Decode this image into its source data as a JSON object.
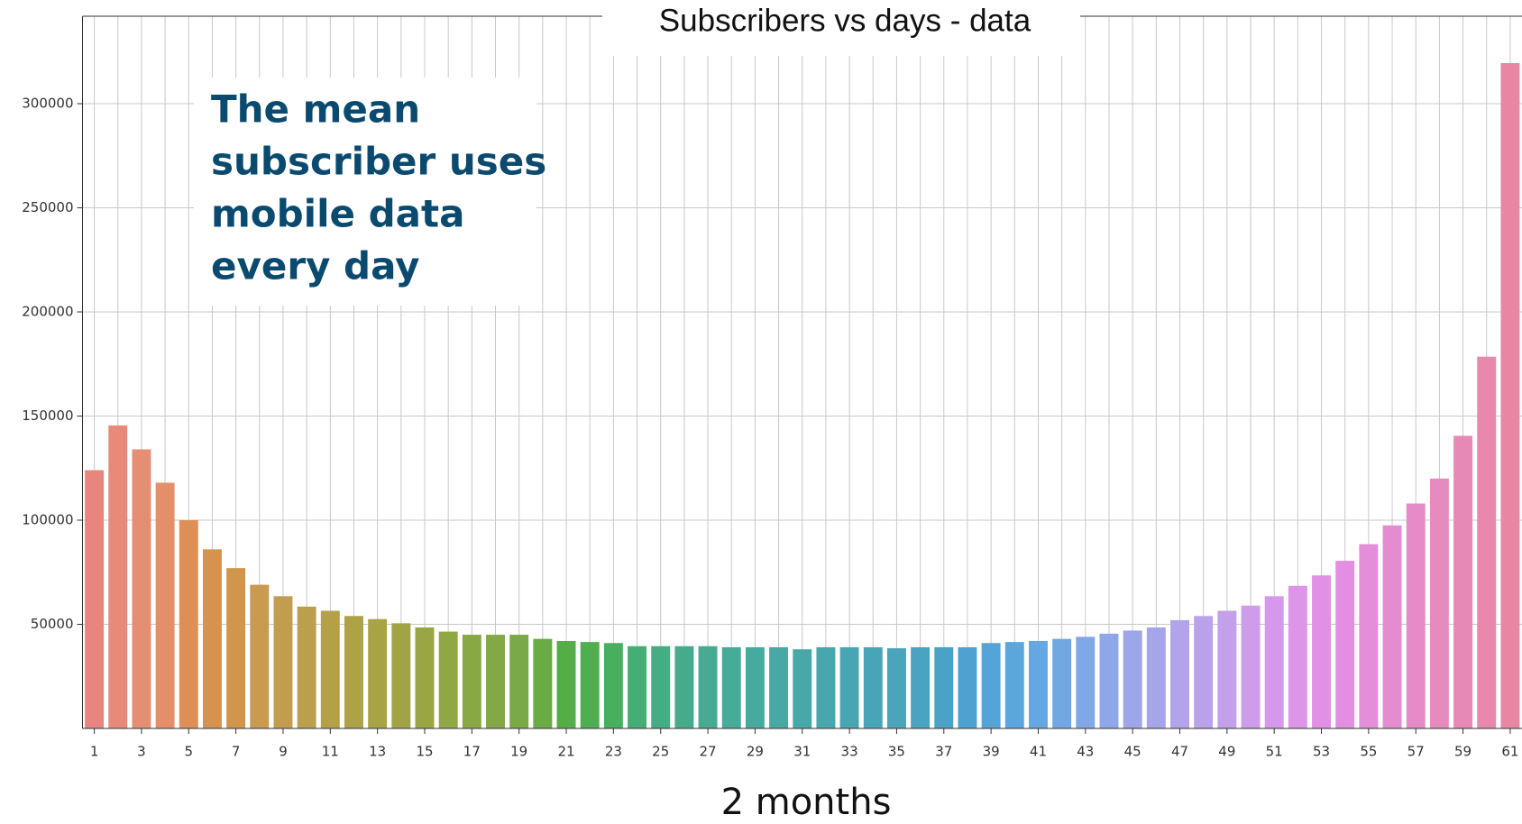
{
  "chart_data": {
    "type": "bar",
    "title": "Subscribers vs days - data",
    "x_label": "2 months",
    "annotation": [
      "The mean",
      "subscriber uses",
      "mobile data",
      "every day"
    ],
    "categories": [
      1,
      null,
      3,
      null,
      5,
      null,
      7,
      null,
      9,
      null,
      11,
      null,
      13,
      null,
      15,
      null,
      17,
      null,
      19,
      null,
      21,
      null,
      23,
      null,
      25,
      null,
      27,
      null,
      29,
      null,
      31,
      null,
      33,
      null,
      35,
      null,
      37,
      null,
      39,
      null,
      41,
      null,
      43,
      null,
      45,
      null,
      47,
      null,
      49,
      null,
      51,
      null,
      53,
      null,
      55,
      null,
      57,
      null,
      59,
      null,
      61
    ],
    "values": [
      124000,
      145500,
      134000,
      118000,
      100000,
      86000,
      77000,
      69000,
      63500,
      58500,
      56500,
      54000,
      52500,
      50500,
      48500,
      46500,
      45000,
      45000,
      45000,
      43000,
      42000,
      41500,
      41000,
      39500,
      39500,
      39500,
      39500,
      39000,
      39000,
      39000,
      38000,
      39000,
      39000,
      39000,
      38500,
      39000,
      39000,
      39000,
      41000,
      41500,
      42000,
      43000,
      44000,
      45500,
      47000,
      48500,
      52000,
      54000,
      56500,
      59000,
      63500,
      68500,
      73500,
      80500,
      88500,
      97500,
      108000,
      120000,
      140500,
      178500,
      319500
    ],
    "colors": [
      "#e8857f",
      "#e78a7a",
      "#e68e73",
      "#e3906a",
      "#dd8f55",
      "#d8924d",
      "#d1954c",
      "#c99a4f",
      "#c29d50",
      "#bb9f4c",
      "#b5a049",
      "#aea247",
      "#a8a345",
      "#a1a444",
      "#99a643",
      "#91a744",
      "#88a845",
      "#82a946",
      "#7aaa47",
      "#6aab46",
      "#55ad48",
      "#4eae50",
      "#47af5e",
      "#45ae75",
      "#44ad83",
      "#45ac8b",
      "#46ab92",
      "#46ab98",
      "#47aa9e",
      "#47a9a3",
      "#47a8a8",
      "#48a7ad",
      "#48a6b2",
      "#48a5b7",
      "#49a4bc",
      "#4aa3c1",
      "#4ba2c7",
      "#4fa2cf",
      "#55a4d8",
      "#5ca6de",
      "#64a7e2",
      "#71a8e4",
      "#80a8e6",
      "#8ea7e8",
      "#9ca6e9",
      "#a7a5e9",
      "#b2a3ea",
      "#bba1ea",
      "#c49fea",
      "#cd9cea",
      "#d698ea",
      "#dd94e9",
      "#e190e6",
      "#e38ee0",
      "#e48dd8",
      "#e58cd0",
      "#e68bc8",
      "#e78abf",
      "#e789b6",
      "#e888ad",
      "#e887a4"
    ],
    "ylim": [
      0,
      342000
    ],
    "yticks": [
      50000,
      100000,
      150000,
      200000,
      250000,
      300000
    ],
    "grid": true
  }
}
